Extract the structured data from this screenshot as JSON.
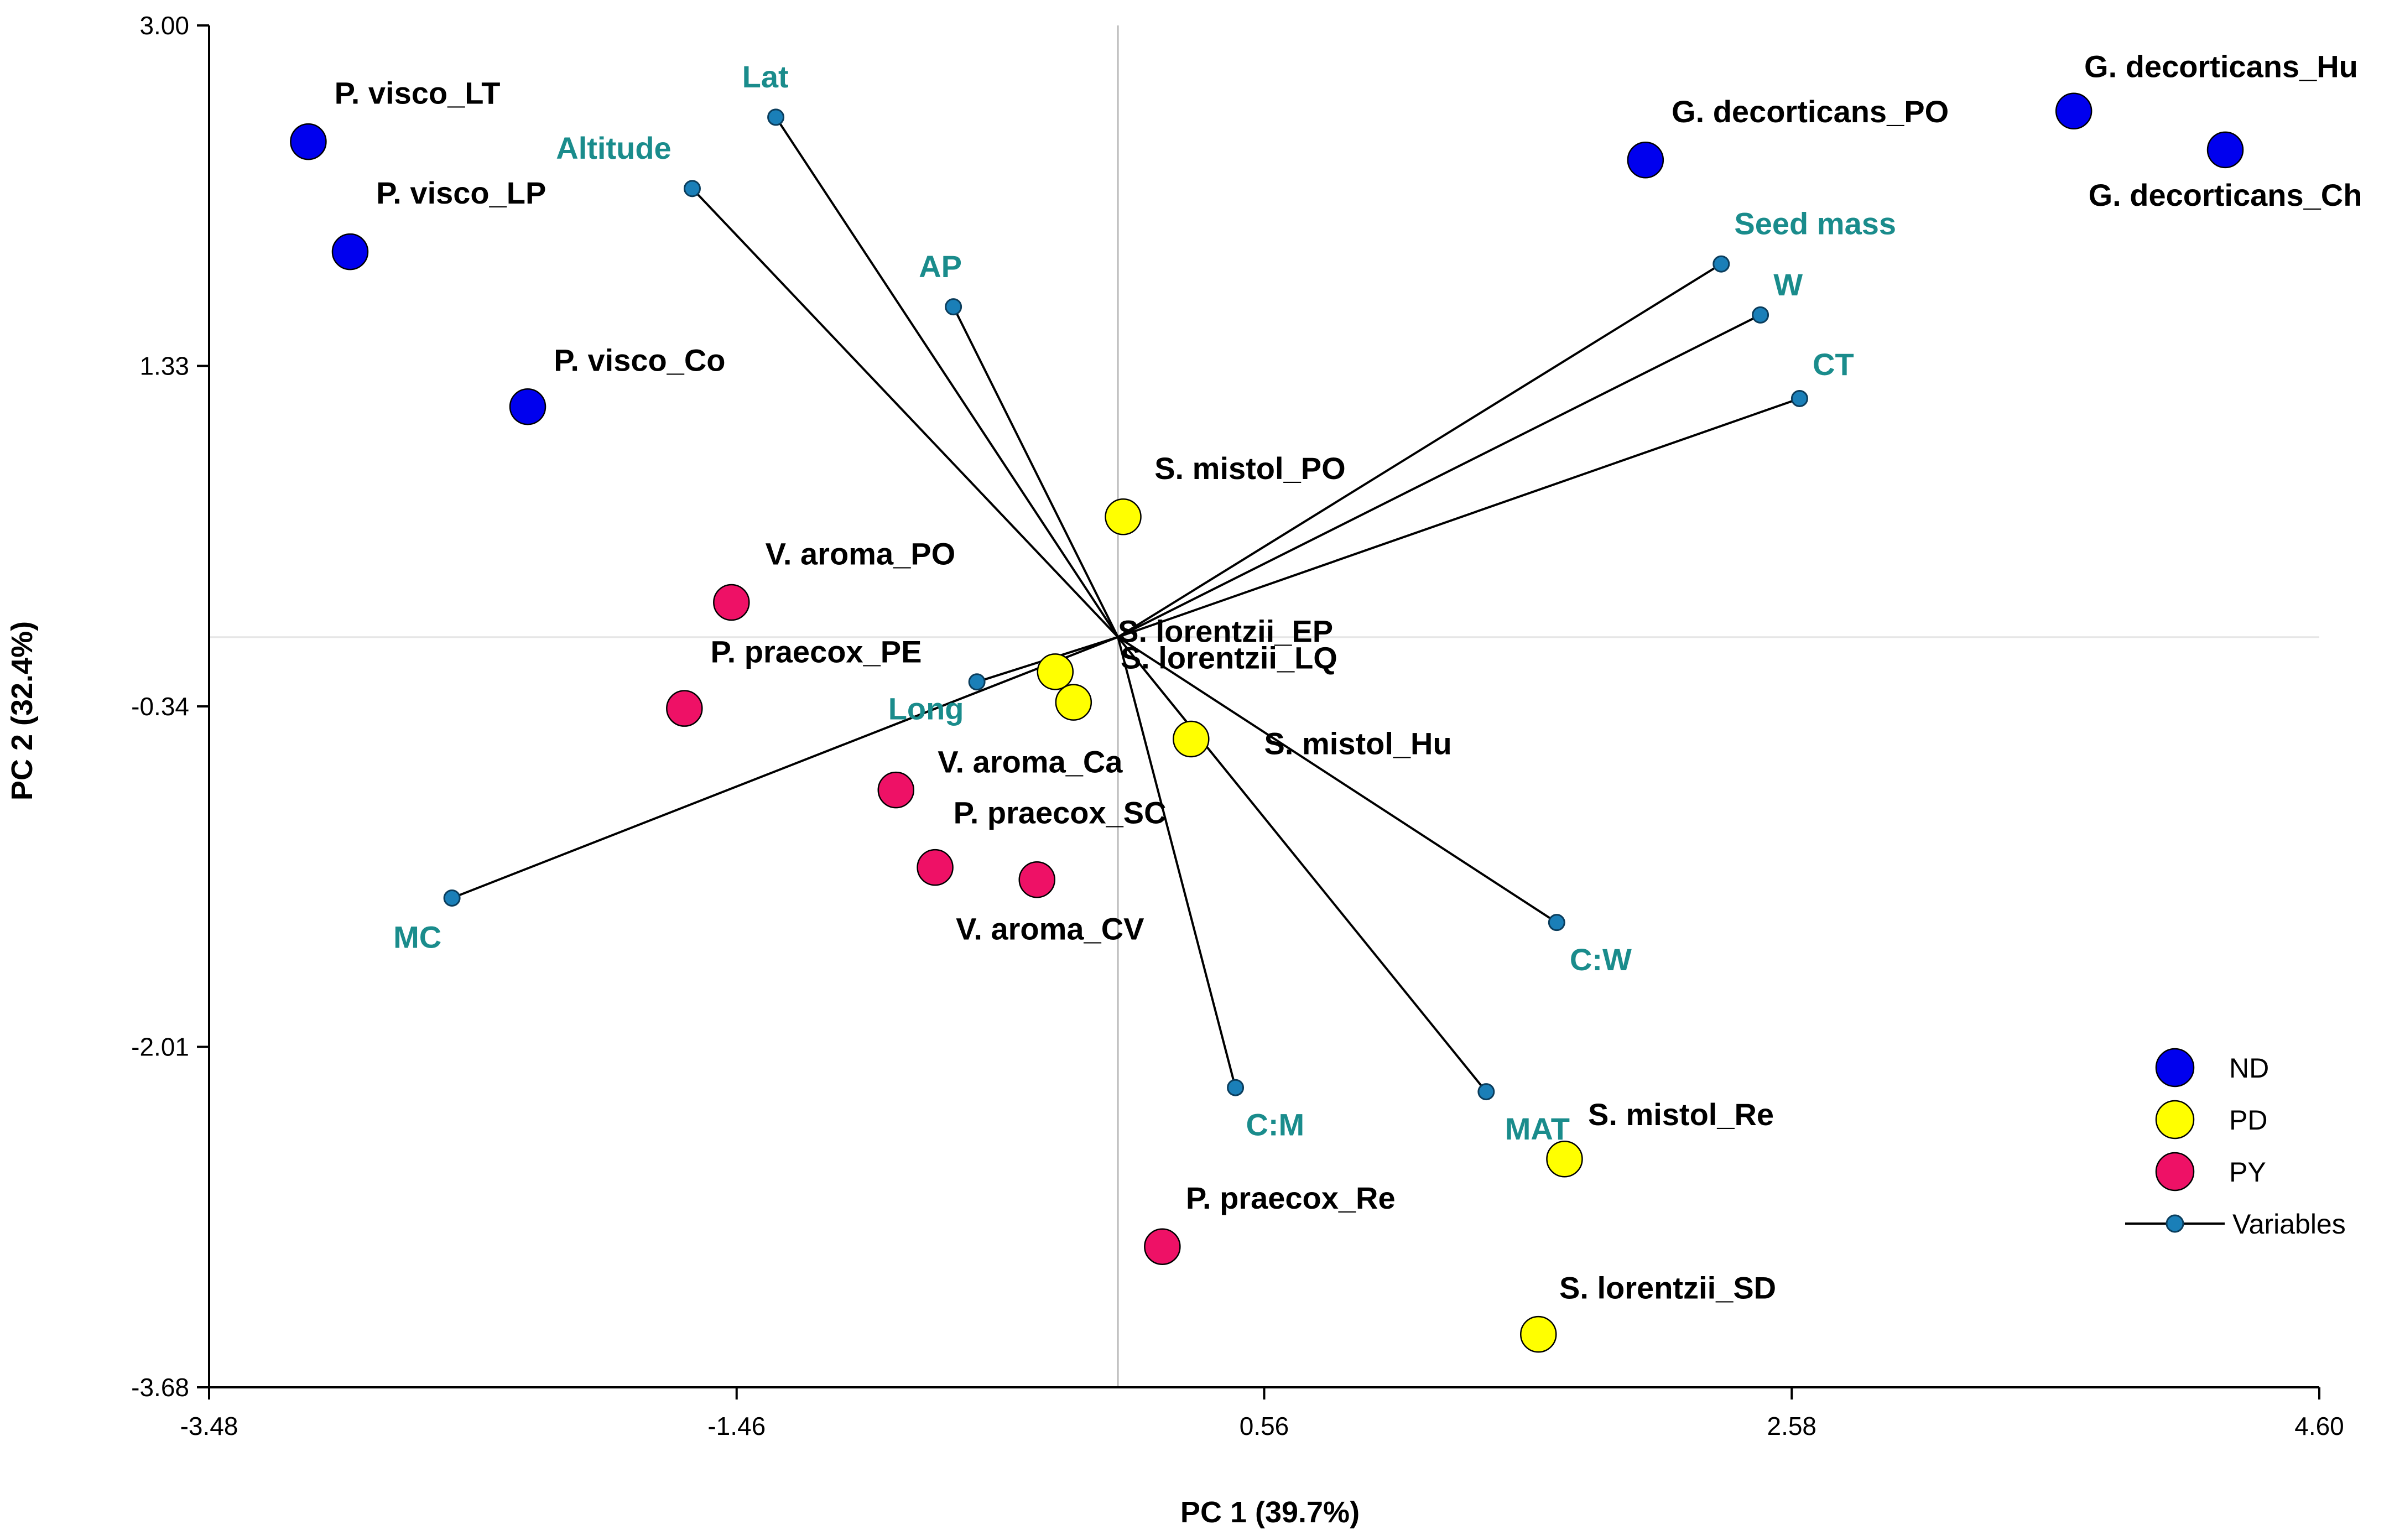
{
  "chart_data": {
    "type": "scatter",
    "subtype": "biplot",
    "xlabel": "PC 1 (39.7%)",
    "ylabel": "PC 2 (32.4%)",
    "xlim": [
      -3.48,
      4.6
    ],
    "ylim": [
      -3.68,
      3.0
    ],
    "x_ticks": [
      "-3.48",
      "-1.46",
      "0.56",
      "2.58",
      "4.60"
    ],
    "y_ticks": [
      "3.00",
      "1.33",
      "-0.34",
      "-2.01",
      "-3.68"
    ],
    "reference_lines": {
      "x": 0,
      "y": 0
    },
    "colors": {
      "ND": "#0000ee",
      "PD": "#ffff00",
      "PY": "#ee1166",
      "variables_line": "#000000",
      "variables_marker": "#1a7fb8",
      "variables_text": "#1a8c8c",
      "grid": "#bbbbbb"
    },
    "legend": {
      "position": "bottom-right",
      "entries": [
        {
          "label": "ND",
          "key": "ND",
          "kind": "marker"
        },
        {
          "label": "PD",
          "key": "PD",
          "kind": "marker"
        },
        {
          "label": "PY",
          "key": "PY",
          "kind": "marker"
        },
        {
          "label": "Variables",
          "key": "variables",
          "kind": "line"
        }
      ]
    },
    "points": [
      {
        "label": "P. visco_LT",
        "group": "ND",
        "x": -3.1,
        "y": 2.43
      },
      {
        "label": "P. visco_LP",
        "group": "ND",
        "x": -2.94,
        "y": 1.89
      },
      {
        "label": "P. visco_Co",
        "group": "ND",
        "x": -2.26,
        "y": 1.13
      },
      {
        "label": "G. decorticans_PO",
        "group": "ND",
        "x": 2.02,
        "y": 2.34
      },
      {
        "label": "G. decorticans_Hu",
        "group": "ND",
        "x": 3.66,
        "y": 2.58
      },
      {
        "label": "G. decorticans_Ch",
        "group": "ND",
        "x": 4.24,
        "y": 2.39
      },
      {
        "label": "S. mistol_PO",
        "group": "PD",
        "x": 0.02,
        "y": 0.59
      },
      {
        "label": "S. lorentzii_EP",
        "group": "PD",
        "x": -0.24,
        "y": -0.17
      },
      {
        "label": "S. lorentzii_LQ",
        "group": "PD",
        "x": -0.17,
        "y": -0.32
      },
      {
        "label": "S. mistol_Hu",
        "group": "PD",
        "x": 0.28,
        "y": -0.5
      },
      {
        "label": "S. mistol_Re",
        "group": "PD",
        "x": 1.71,
        "y": -2.56
      },
      {
        "label": "S. lorentzii_SD",
        "group": "PD",
        "x": 1.61,
        "y": -3.42
      },
      {
        "label": "V. aroma_PO",
        "group": "PY",
        "x": -1.48,
        "y": 0.17
      },
      {
        "label": "P. praecox_PE",
        "group": "PY",
        "x": -1.66,
        "y": -0.35
      },
      {
        "label": "V. aroma_Ca",
        "group": "PY",
        "x": -0.85,
        "y": -0.75
      },
      {
        "label": "P. praecox_SC",
        "group": "PY",
        "x": -0.7,
        "y": -1.13
      },
      {
        "label": "V. aroma_CV",
        "group": "PY",
        "x": -0.31,
        "y": -1.19
      },
      {
        "label": "P. praecox_Re",
        "group": "PY",
        "x": 0.17,
        "y": -2.99
      }
    ],
    "variables": [
      {
        "label": "Lat",
        "x": -1.31,
        "y": 2.55
      },
      {
        "label": "Altitude",
        "x": -1.63,
        "y": 2.2
      },
      {
        "label": "AP",
        "x": -0.63,
        "y": 1.62
      },
      {
        "label": "Seed mass",
        "x": 2.31,
        "y": 1.83
      },
      {
        "label": "W",
        "x": 2.46,
        "y": 1.58
      },
      {
        "label": "CT",
        "x": 2.61,
        "y": 1.17
      },
      {
        "label": "Long",
        "x": -0.54,
        "y": -0.22
      },
      {
        "label": "MC",
        "x": -2.55,
        "y": -1.28
      },
      {
        "label": "C:W",
        "x": 1.68,
        "y": -1.4
      },
      {
        "label": "C:M",
        "x": 0.45,
        "y": -2.21
      },
      {
        "label": "MAT",
        "x": 1.41,
        "y": -2.23
      }
    ]
  }
}
